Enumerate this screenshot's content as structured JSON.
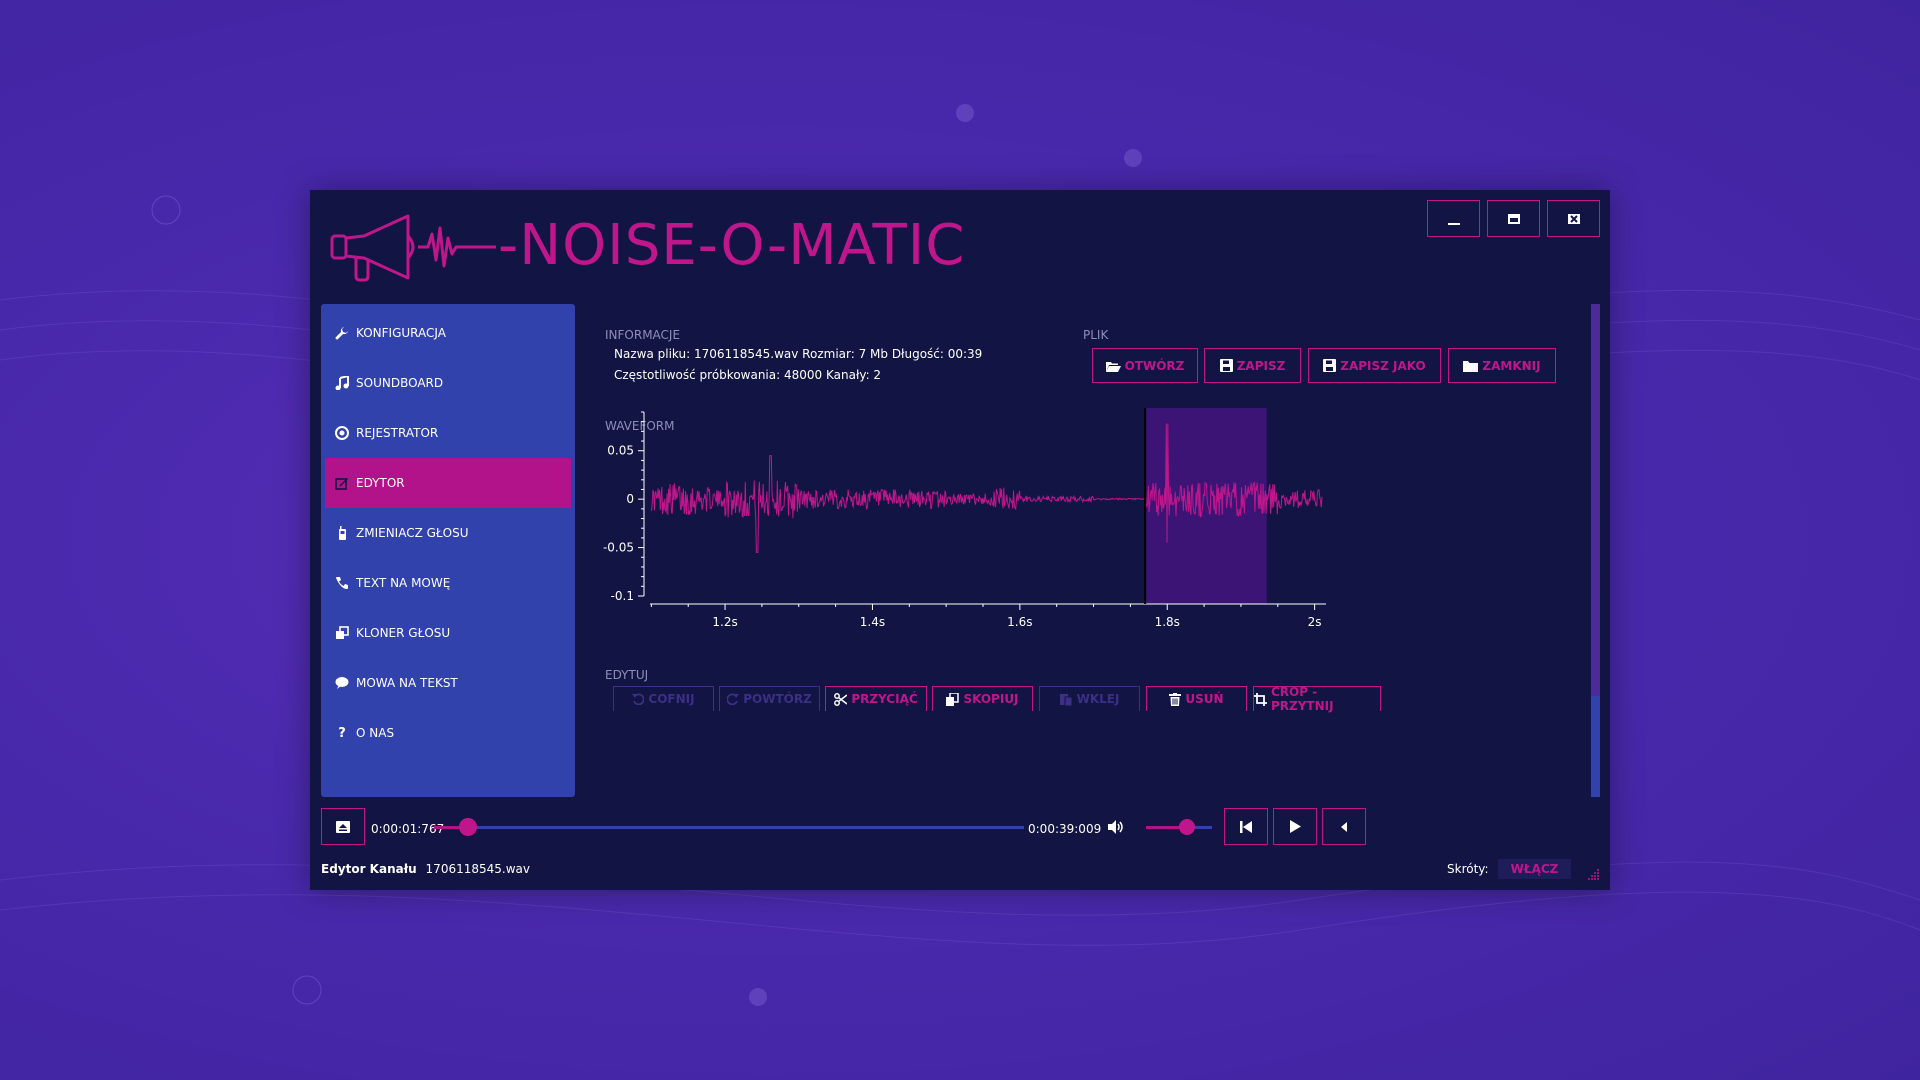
{
  "app": {
    "title": "-NOISE-O-MATIC"
  },
  "colors": {
    "accent": "#c0168c",
    "sidebar": "#3242ad",
    "window_bg": "#121443",
    "selection": "#3b1475"
  },
  "window_controls": [
    {
      "name": "minimize",
      "icon": "minimize-icon"
    },
    {
      "name": "maximize",
      "icon": "maximize-icon"
    },
    {
      "name": "close",
      "icon": "close-icon"
    }
  ],
  "sidebar": {
    "items": [
      {
        "label": "KONFIGURACJA",
        "icon": "wrench-icon",
        "active": false
      },
      {
        "label": "SOUNDBOARD",
        "icon": "music-note-icon",
        "active": false
      },
      {
        "label": "REJESTRATOR",
        "icon": "record-icon",
        "active": false
      },
      {
        "label": "EDYTOR",
        "icon": "edit-icon",
        "active": true
      },
      {
        "label": "ZMIENIACZ GŁOSU",
        "icon": "walkie-talkie-icon",
        "active": false
      },
      {
        "label": "TEXT NA MOWĘ",
        "icon": "phone-icon",
        "active": false
      },
      {
        "label": "KLONER GŁOSU",
        "icon": "clone-icon",
        "active": false
      },
      {
        "label": "MOWA NA TEKST",
        "icon": "speech-bubble-icon",
        "active": false
      },
      {
        "label": "O NAS",
        "icon": "question-icon",
        "active": false
      }
    ]
  },
  "info": {
    "label": "INFORMACJE",
    "line1": "Nazwa pliku: 1706118545.wav Rozmiar: 7 Mb Długość: 00:39",
    "line2": "Częstotliwość próbkowania: 48000 Kanały: 2"
  },
  "file": {
    "label": "PLIK",
    "buttons": [
      {
        "label": "OTWÓRZ",
        "icon": "folder-open-icon"
      },
      {
        "label": "ZAPISZ",
        "icon": "save-icon"
      },
      {
        "label": "ZAPISZ JAKO",
        "icon": "save-icon"
      },
      {
        "label": "ZAMKNIJ",
        "icon": "folder-icon"
      }
    ]
  },
  "waveform": {
    "label": "WAVEFORM"
  },
  "chart_data": {
    "type": "line",
    "x_ticks": [
      "1.2s",
      "1.4s",
      "1.6s",
      "1.8s",
      "2s"
    ],
    "x_tick_values": [
      1.2,
      1.4,
      1.6,
      1.8,
      2.0
    ],
    "y_ticks": [
      "0.05",
      "0",
      "-0.05",
      "-0.1"
    ],
    "y_tick_values": [
      0.05,
      0,
      -0.05,
      -0.1
    ],
    "xlim": [
      1.09,
      2.01
    ],
    "ylim": [
      -0.1,
      0.09
    ],
    "cursor_x": 1.77,
    "selection": [
      1.77,
      1.935
    ],
    "line_color": "#c0168c",
    "grid": false
  },
  "edit": {
    "label": "EDYTUJ",
    "buttons": [
      {
        "label": "COFNIJ",
        "icon": "undo-icon",
        "enabled": false
      },
      {
        "label": "POWTÓRZ",
        "icon": "redo-icon",
        "enabled": false
      },
      {
        "label": "PRZYCIĄĆ",
        "icon": "scissors-icon",
        "enabled": true
      },
      {
        "label": "SKOPIUJ",
        "icon": "copy-icon",
        "enabled": true
      },
      {
        "label": "WKLEJ",
        "icon": "paste-icon",
        "enabled": false
      },
      {
        "label": "USUŃ",
        "icon": "trash-icon",
        "enabled": true
      },
      {
        "label": "CROP - PRZYTNIJ",
        "icon": "crop-icon",
        "enabled": true
      }
    ]
  },
  "player": {
    "current_time": "0:00:01:767",
    "total_time": "0:00:39:009",
    "progress": 0.057,
    "volume": 0.62
  },
  "status": {
    "channel_label": "Edytor Kanału",
    "file_name": "1706118545.wav",
    "shortcuts_label": "Skróty:",
    "shortcuts_button": "WŁĄCZ"
  }
}
